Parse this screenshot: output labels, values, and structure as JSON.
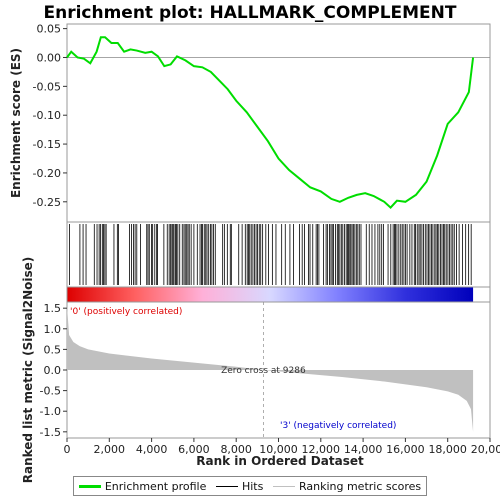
{
  "chart_data": {
    "type": "line",
    "title": "Enrichment plot: HALLMARK_COMPLEMENT",
    "es_panel": {
      "ylabel": "Enrichment score (ES)",
      "ylim": [
        -0.285,
        0.058
      ],
      "yticks": [
        0.05,
        0.0,
        -0.05,
        -0.1,
        -0.15,
        -0.2,
        -0.25
      ],
      "ytick_labels": [
        "0.05",
        "0.00",
        "-0.05",
        "-0.10",
        "-0.15",
        "-0.20",
        "-0.25"
      ],
      "series": [
        {
          "color": "#00dd00",
          "x": [
            0,
            200,
            500,
            800,
            1100,
            1400,
            1600,
            1800,
            2100,
            2400,
            2700,
            3000,
            3300,
            3700,
            4000,
            4300,
            4600,
            4900,
            5200,
            5600,
            6000,
            6400,
            6800,
            7200,
            7600,
            8000,
            8500,
            9000,
            9500,
            10000,
            10500,
            11000,
            11500,
            12000,
            12500,
            12900,
            13300,
            13700,
            14100,
            14500,
            15000,
            15300,
            15600,
            16000,
            16500,
            17000,
            17500,
            18000,
            18500,
            19000,
            19200
          ],
          "y": [
            0.0,
            0.01,
            0.0,
            -0.002,
            -0.01,
            0.01,
            0.035,
            0.035,
            0.025,
            0.025,
            0.01,
            0.014,
            0.012,
            0.008,
            0.01,
            0.002,
            -0.015,
            -0.012,
            0.002,
            -0.005,
            -0.015,
            -0.017,
            -0.025,
            -0.04,
            -0.055,
            -0.075,
            -0.095,
            -0.12,
            -0.145,
            -0.175,
            -0.195,
            -0.21,
            -0.225,
            -0.232,
            -0.245,
            -0.25,
            -0.243,
            -0.238,
            -0.235,
            -0.24,
            -0.25,
            -0.26,
            -0.248,
            -0.25,
            -0.238,
            -0.215,
            -0.17,
            -0.115,
            -0.095,
            -0.06,
            0.0
          ]
        }
      ]
    },
    "hits": [
      120,
      610,
      760,
      900,
      1290,
      1420,
      1520,
      1590,
      1670,
      1730,
      1790,
      1850,
      2220,
      2380,
      2430,
      2950,
      3050,
      3140,
      3220,
      3300,
      3480,
      3770,
      3830,
      3890,
      3990,
      4050,
      4150,
      4240,
      4280,
      4580,
      4740,
      4830,
      4900,
      4960,
      5010,
      5060,
      5130,
      5180,
      5240,
      5330,
      5450,
      5530,
      5590,
      5660,
      5720,
      5780,
      5870,
      6000,
      6160,
      6290,
      6360,
      6410,
      6490,
      6560,
      6620,
      6700,
      6780,
      6850,
      6930,
      7010,
      7360,
      7440,
      7580,
      7720,
      7770,
      8120,
      8280,
      8430,
      8520,
      8580,
      8640,
      8710,
      8790,
      8860,
      8940,
      9010,
      9090,
      9160,
      9250,
      9400,
      9530,
      9710,
      9880,
      10150,
      10320,
      10540,
      10710,
      10990,
      11120,
      11230,
      11420,
      11490,
      11620,
      11780,
      11840,
      11910,
      12130,
      12250,
      12310,
      12410,
      12480,
      12540,
      12600,
      12700,
      12780,
      12830,
      12900,
      12970,
      13040,
      13120,
      13200,
      13260,
      13310,
      13370,
      13420,
      13480,
      13540,
      13610,
      13680,
      13750,
      13820,
      13900,
      14150,
      14290,
      14420,
      14560,
      14700,
      14790,
      14880,
      14970,
      15180,
      15310,
      15420,
      15480,
      15530,
      15600,
      15690,
      15780,
      15850,
      15930,
      16010,
      16080,
      16210,
      16310,
      16420,
      16480,
      16560,
      16640,
      16700,
      16780,
      16860,
      16940,
      17020,
      17090,
      17160,
      17230,
      17300,
      17390,
      17450,
      17520,
      17580,
      17660,
      17730,
      17800,
      17860,
      17930,
      18010,
      18080,
      18160,
      18240,
      18310,
      18420,
      18540,
      18700,
      18850,
      18990,
      19110
    ],
    "heatmap_gradient": [
      "#dd0000",
      "#ff6060",
      "#ffb0d8",
      "#d8d8ff",
      "#8080ff",
      "#3030dd",
      "#0000bb"
    ],
    "metric_panel": {
      "ylabel": "Ranked list metric (Signal2Noise)",
      "ylim": [
        -1.65,
        1.65
      ],
      "yticks": [
        1.5,
        1.0,
        0.5,
        0.0,
        -0.5,
        -1.0,
        -1.5
      ],
      "ytick_labels": [
        "1.5",
        "1.0",
        "0.5",
        "0.0",
        "-0.5",
        "-1.0",
        "-1.5"
      ],
      "x": [
        0,
        100,
        300,
        600,
        1000,
        2000,
        4000,
        6000,
        8000,
        9286,
        11000,
        13000,
        15000,
        17000,
        18000,
        18500,
        18900,
        19100,
        19200
      ],
      "y": [
        1.55,
        0.85,
        0.68,
        0.58,
        0.5,
        0.4,
        0.28,
        0.18,
        0.08,
        0.0,
        -0.08,
        -0.17,
        -0.28,
        -0.42,
        -0.52,
        -0.6,
        -0.75,
        -0.95,
        -1.5
      ],
      "fill_color": "#c0c0c0",
      "zero_cross_label": "Zero cross at 9286",
      "zero_cross_x": 9286,
      "pos_label": "'0' (positively correlated)",
      "neg_label": "'3' (negatively correlated)",
      "pos_color": "#dd0000",
      "neg_color": "#0000cc"
    },
    "xlabel": "Rank in Ordered Dataset",
    "xlim": [
      0,
      20000
    ],
    "xticks": [
      0,
      2000,
      4000,
      6000,
      8000,
      10000,
      12000,
      14000,
      16000,
      18000,
      20000
    ],
    "xtick_labels": [
      "0",
      "2,000",
      "4,000",
      "6,000",
      "8,000",
      "10,000",
      "12,000",
      "14,000",
      "16,000",
      "18,000",
      "20,000"
    ],
    "legend": {
      "enrichment_label": "Enrichment profile",
      "hits_label": "Hits",
      "ranking_label": "Ranking metric scores",
      "enrichment_color": "#00dd00",
      "hits_color": "#000000",
      "ranking_color": "#c0c0c0"
    }
  }
}
